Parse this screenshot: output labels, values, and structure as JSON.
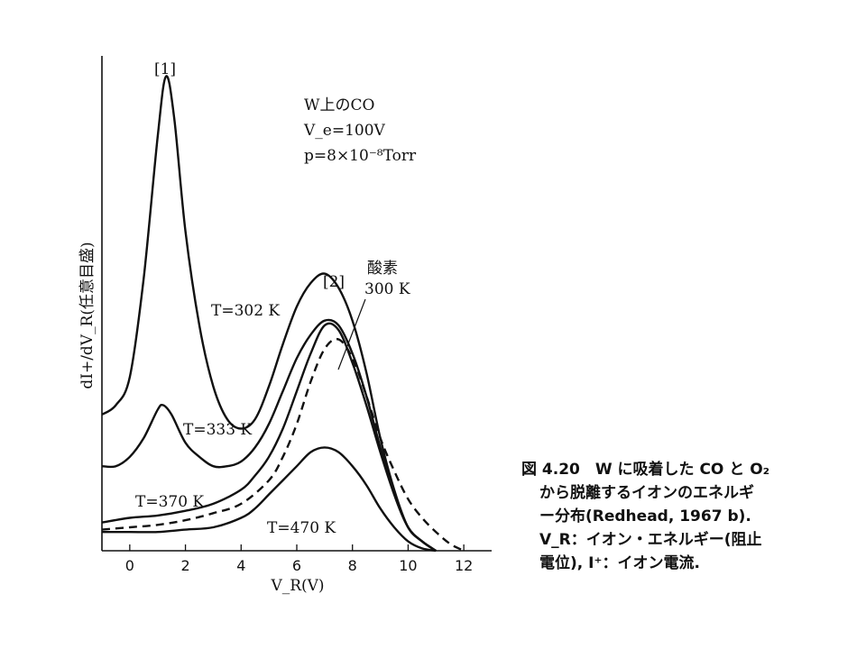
{
  "chart_data": {
    "type": "line",
    "xlabel": "V_R(V)",
    "ylabel": "dI+/dV_R(任意目盛)",
    "xlim": [
      -1,
      13
    ],
    "ylim": [
      0,
      100
    ],
    "x_ticks": [
      0,
      2,
      4,
      6,
      8,
      10,
      12
    ],
    "grid": false,
    "legend": "none",
    "peak_labels": [
      "[1]",
      "[2]"
    ],
    "conditions": [
      "W上のCO",
      "V_e=100V",
      "p=8×10⁻⁸Torr"
    ],
    "oxygen_label": [
      "酸素",
      "300 K"
    ],
    "series": [
      {
        "name": "T=302 K",
        "style": "solid",
        "x": [
          -1,
          -0.5,
          0,
          0.5,
          1,
          1.3,
          1.6,
          2,
          2.5,
          3,
          3.5,
          4,
          4.5,
          5,
          5.5,
          6,
          6.5,
          7,
          7.5,
          8,
          8.5,
          9,
          9.5,
          10,
          10.5,
          11
        ],
        "y": [
          29,
          31,
          37,
          58,
          88,
          101,
          92,
          68,
          48,
          35,
          28,
          26,
          28,
          35,
          44,
          52,
          57,
          59,
          56,
          49,
          38,
          24,
          13,
          5,
          2,
          0
        ]
      },
      {
        "name": "T=333 K",
        "style": "solid",
        "x": [
          -1,
          -0.5,
          0,
          0.5,
          1,
          1.2,
          1.5,
          2,
          2.5,
          3,
          3.5,
          4,
          4.5,
          5,
          5.5,
          6,
          6.5,
          7,
          7.5,
          8,
          8.5,
          9,
          9.5,
          10,
          10.5,
          11
        ],
        "y": [
          18,
          18,
          20,
          24,
          30,
          31,
          29,
          23,
          20,
          18,
          18,
          19,
          22,
          27,
          34,
          41,
          46,
          49,
          48,
          42,
          33,
          22,
          12,
          5,
          2,
          0
        ]
      },
      {
        "name": "T=370 K",
        "style": "solid",
        "x": [
          -1,
          0,
          1,
          2,
          3,
          4,
          4.5,
          5,
          5.5,
          6,
          6.5,
          7,
          7.5,
          8,
          8.5,
          9,
          9.5,
          10,
          10.5,
          11
        ],
        "y": [
          6,
          7,
          7.5,
          8.5,
          10,
          13,
          16,
          20,
          26,
          34,
          42,
          48,
          47,
          40,
          31,
          21,
          12,
          5,
          2,
          0
        ]
      },
      {
        "name": "酸素 300 K",
        "style": "dashed",
        "x": [
          -1,
          0,
          1,
          2,
          3,
          4,
          5,
          5.5,
          6,
          6.5,
          7,
          7.5,
          8,
          8.5,
          9,
          9.5,
          10,
          10.5,
          11,
          11.5,
          12
        ],
        "y": [
          4.5,
          5,
          5.5,
          6.5,
          8,
          10,
          15,
          20,
          27,
          36,
          43,
          45,
          41,
          33,
          24,
          17,
          11,
          7,
          4,
          1.5,
          0
        ]
      },
      {
        "name": "T=470 K",
        "style": "solid",
        "x": [
          -1,
          0,
          1,
          2,
          3,
          4,
          4.5,
          5,
          5.5,
          6,
          6.5,
          7,
          7.5,
          8,
          8.5,
          9,
          9.5,
          10,
          10.5,
          11
        ],
        "y": [
          4,
          4,
          4,
          4.5,
          5,
          7,
          9,
          12,
          15,
          18,
          21,
          22,
          21,
          18,
          14,
          9,
          5,
          2,
          0.5,
          0
        ]
      }
    ]
  },
  "caption": {
    "lines": [
      "図 4.20　W に吸着した CO と O₂",
      "から脱離するイオンのエネルギ",
      "ー分布(Redhead, 1967 b).",
      "V_R：イオン・エネルギー(阻止",
      "電位), I⁺：イオン電流."
    ]
  }
}
